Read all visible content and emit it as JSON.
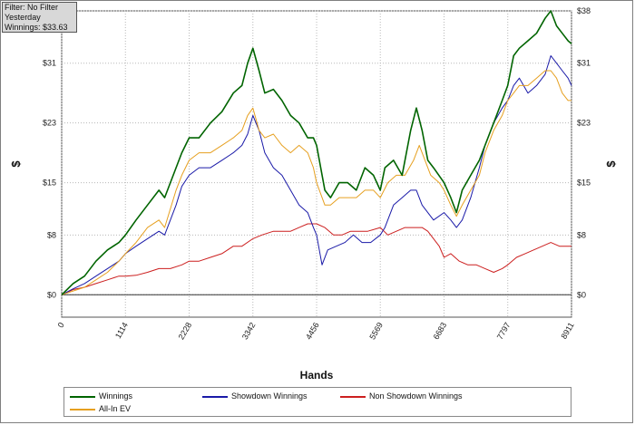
{
  "info": {
    "filter": "Filter: No Filter",
    "period": "Yesterday",
    "winnings": "Winnings: $33.63"
  },
  "chart_data": {
    "type": "line",
    "xlabel": "Hands",
    "ylabel": "$",
    "ylabel_right": "$",
    "xlim": [
      0,
      8911
    ],
    "ylim": [
      -3,
      38
    ],
    "x_ticks": [
      "0",
      "1114",
      "2228",
      "3342",
      "4456",
      "5569",
      "6683",
      "7797",
      "8911"
    ],
    "y_ticks": [
      "$0",
      "$8",
      "$15",
      "$23",
      "$31",
      "$38"
    ],
    "grid": true,
    "legend_position": "bottom",
    "series": [
      {
        "name": "Winnings",
        "color": "#006400",
        "points": [
          [
            0,
            0
          ],
          [
            200,
            1.5
          ],
          [
            400,
            2.5
          ],
          [
            600,
            4.5
          ],
          [
            800,
            6
          ],
          [
            1000,
            7
          ],
          [
            1114,
            8
          ],
          [
            1300,
            10
          ],
          [
            1500,
            12
          ],
          [
            1700,
            14
          ],
          [
            1800,
            13
          ],
          [
            2000,
            17
          ],
          [
            2100,
            19
          ],
          [
            2228,
            21
          ],
          [
            2400,
            21
          ],
          [
            2600,
            23
          ],
          [
            2800,
            24.5
          ],
          [
            3000,
            27
          ],
          [
            3150,
            28
          ],
          [
            3250,
            31
          ],
          [
            3342,
            33
          ],
          [
            3450,
            30
          ],
          [
            3550,
            27
          ],
          [
            3700,
            27.5
          ],
          [
            3850,
            26
          ],
          [
            4000,
            24
          ],
          [
            4150,
            23
          ],
          [
            4300,
            21
          ],
          [
            4400,
            21
          ],
          [
            4456,
            20
          ],
          [
            4600,
            14
          ],
          [
            4700,
            13
          ],
          [
            4850,
            15
          ],
          [
            5000,
            15
          ],
          [
            5150,
            14
          ],
          [
            5300,
            17
          ],
          [
            5450,
            16
          ],
          [
            5569,
            14
          ],
          [
            5650,
            17
          ],
          [
            5800,
            18
          ],
          [
            5950,
            16
          ],
          [
            6100,
            22
          ],
          [
            6200,
            25
          ],
          [
            6300,
            22
          ],
          [
            6400,
            18
          ],
          [
            6500,
            17
          ],
          [
            6683,
            15
          ],
          [
            6800,
            13
          ],
          [
            6900,
            11
          ],
          [
            7000,
            14
          ],
          [
            7150,
            16
          ],
          [
            7300,
            18
          ],
          [
            7400,
            20
          ],
          [
            7550,
            23
          ],
          [
            7700,
            26
          ],
          [
            7797,
            28
          ],
          [
            7900,
            32
          ],
          [
            8000,
            33
          ],
          [
            8150,
            34
          ],
          [
            8300,
            35
          ],
          [
            8450,
            37
          ],
          [
            8550,
            38
          ],
          [
            8650,
            36
          ],
          [
            8750,
            35
          ],
          [
            8850,
            34
          ],
          [
            8911,
            33.6
          ]
        ]
      },
      {
        "name": "Showdown Winnings",
        "color": "#1a1aa8",
        "points": [
          [
            0,
            0
          ],
          [
            200,
            0.8
          ],
          [
            400,
            1.5
          ],
          [
            600,
            2.5
          ],
          [
            800,
            3.5
          ],
          [
            1000,
            4.5
          ],
          [
            1114,
            5.5
          ],
          [
            1300,
            6.5
          ],
          [
            1500,
            7.5
          ],
          [
            1700,
            8.5
          ],
          [
            1800,
            8
          ],
          [
            2000,
            12
          ],
          [
            2100,
            14.5
          ],
          [
            2228,
            16
          ],
          [
            2400,
            17
          ],
          [
            2600,
            17
          ],
          [
            2800,
            18
          ],
          [
            3000,
            19
          ],
          [
            3150,
            20
          ],
          [
            3250,
            21.5
          ],
          [
            3342,
            24
          ],
          [
            3450,
            22
          ],
          [
            3550,
            19
          ],
          [
            3700,
            17
          ],
          [
            3850,
            16
          ],
          [
            4000,
            14
          ],
          [
            4150,
            12
          ],
          [
            4300,
            11
          ],
          [
            4400,
            9
          ],
          [
            4456,
            8
          ],
          [
            4550,
            4
          ],
          [
            4650,
            6
          ],
          [
            4800,
            6.5
          ],
          [
            4950,
            7
          ],
          [
            5100,
            8
          ],
          [
            5250,
            7
          ],
          [
            5400,
            7
          ],
          [
            5569,
            8
          ],
          [
            5650,
            9
          ],
          [
            5800,
            12
          ],
          [
            5950,
            13
          ],
          [
            6100,
            14
          ],
          [
            6200,
            14
          ],
          [
            6300,
            12
          ],
          [
            6400,
            11
          ],
          [
            6500,
            10
          ],
          [
            6683,
            11
          ],
          [
            6800,
            10
          ],
          [
            6900,
            9
          ],
          [
            7000,
            10
          ],
          [
            7150,
            13
          ],
          [
            7300,
            17
          ],
          [
            7400,
            20
          ],
          [
            7550,
            23
          ],
          [
            7700,
            25
          ],
          [
            7797,
            26
          ],
          [
            7900,
            28
          ],
          [
            8000,
            29
          ],
          [
            8150,
            27
          ],
          [
            8300,
            28
          ],
          [
            8450,
            29.5
          ],
          [
            8550,
            32
          ],
          [
            8650,
            31
          ],
          [
            8750,
            30
          ],
          [
            8850,
            29
          ],
          [
            8911,
            28
          ]
        ]
      },
      {
        "name": "Non Showdown Winnings",
        "color": "#cc1f1f",
        "points": [
          [
            0,
            0
          ],
          [
            200,
            0.7
          ],
          [
            400,
            1
          ],
          [
            600,
            1.5
          ],
          [
            800,
            2
          ],
          [
            1000,
            2.5
          ],
          [
            1114,
            2.5
          ],
          [
            1300,
            2.6
          ],
          [
            1500,
            3
          ],
          [
            1700,
            3.5
          ],
          [
            1900,
            3.5
          ],
          [
            2100,
            4
          ],
          [
            2228,
            4.5
          ],
          [
            2400,
            4.5
          ],
          [
            2600,
            5
          ],
          [
            2800,
            5.5
          ],
          [
            3000,
            6.5
          ],
          [
            3150,
            6.5
          ],
          [
            3342,
            7.5
          ],
          [
            3500,
            8
          ],
          [
            3700,
            8.5
          ],
          [
            3850,
            8.5
          ],
          [
            4000,
            8.5
          ],
          [
            4150,
            9
          ],
          [
            4300,
            9.5
          ],
          [
            4456,
            9.5
          ],
          [
            4600,
            9
          ],
          [
            4750,
            8
          ],
          [
            4900,
            8
          ],
          [
            5050,
            8.5
          ],
          [
            5200,
            8.5
          ],
          [
            5350,
            8.5
          ],
          [
            5569,
            9
          ],
          [
            5700,
            8
          ],
          [
            5850,
            8.5
          ],
          [
            6000,
            9
          ],
          [
            6150,
            9
          ],
          [
            6300,
            9
          ],
          [
            6400,
            8.5
          ],
          [
            6500,
            7.5
          ],
          [
            6600,
            6.5
          ],
          [
            6683,
            5
          ],
          [
            6800,
            5.5
          ],
          [
            6950,
            4.5
          ],
          [
            7100,
            4
          ],
          [
            7250,
            4
          ],
          [
            7400,
            3.5
          ],
          [
            7550,
            3
          ],
          [
            7700,
            3.5
          ],
          [
            7797,
            4
          ],
          [
            7950,
            5
          ],
          [
            8100,
            5.5
          ],
          [
            8250,
            6
          ],
          [
            8400,
            6.5
          ],
          [
            8550,
            7
          ],
          [
            8700,
            6.5
          ],
          [
            8800,
            6.5
          ],
          [
            8911,
            6.5
          ]
        ]
      },
      {
        "name": "All-In EV",
        "color": "#e6a020",
        "points": [
          [
            0,
            0
          ],
          [
            200,
            0.5
          ],
          [
            400,
            1
          ],
          [
            600,
            2
          ],
          [
            800,
            3
          ],
          [
            1000,
            4.5
          ],
          [
            1114,
            5.5
          ],
          [
            1300,
            7
          ],
          [
            1500,
            9
          ],
          [
            1700,
            10
          ],
          [
            1800,
            9
          ],
          [
            2000,
            14
          ],
          [
            2100,
            16
          ],
          [
            2228,
            18
          ],
          [
            2400,
            19
          ],
          [
            2600,
            19
          ],
          [
            2800,
            20
          ],
          [
            3000,
            21
          ],
          [
            3150,
            22
          ],
          [
            3250,
            24
          ],
          [
            3342,
            25
          ],
          [
            3450,
            22
          ],
          [
            3550,
            21
          ],
          [
            3700,
            21.5
          ],
          [
            3850,
            20
          ],
          [
            4000,
            19
          ],
          [
            4150,
            20
          ],
          [
            4300,
            19
          ],
          [
            4400,
            17
          ],
          [
            4456,
            15
          ],
          [
            4600,
            12
          ],
          [
            4700,
            12
          ],
          [
            4850,
            13
          ],
          [
            5000,
            13
          ],
          [
            5150,
            13
          ],
          [
            5300,
            14
          ],
          [
            5450,
            14
          ],
          [
            5569,
            13
          ],
          [
            5700,
            15
          ],
          [
            5850,
            16
          ],
          [
            6000,
            16
          ],
          [
            6150,
            18
          ],
          [
            6250,
            20
          ],
          [
            6350,
            18
          ],
          [
            6450,
            16
          ],
          [
            6600,
            15
          ],
          [
            6683,
            14
          ],
          [
            6800,
            12
          ],
          [
            6900,
            10.5
          ],
          [
            7000,
            12
          ],
          [
            7150,
            14
          ],
          [
            7300,
            16
          ],
          [
            7400,
            19
          ],
          [
            7550,
            22
          ],
          [
            7700,
            24
          ],
          [
            7797,
            26
          ],
          [
            7900,
            27
          ],
          [
            8000,
            28
          ],
          [
            8150,
            28
          ],
          [
            8300,
            29
          ],
          [
            8450,
            30
          ],
          [
            8550,
            30
          ],
          [
            8650,
            29
          ],
          [
            8750,
            27
          ],
          [
            8850,
            26
          ],
          [
            8911,
            26
          ]
        ]
      }
    ]
  }
}
